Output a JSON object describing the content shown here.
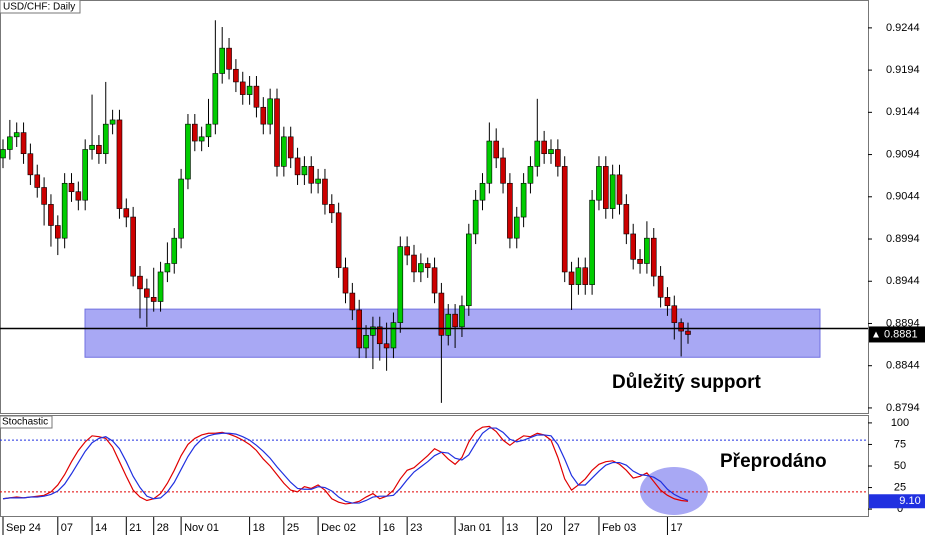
{
  "chart_data": [
    {
      "type": "candlestick",
      "title": "USD/CHF: Daily",
      "categories": [
        "Sep 24",
        null,
        null,
        null,
        null,
        null,
        null,
        null,
        "07",
        null,
        null,
        null,
        null,
        "14",
        null,
        null,
        null,
        null,
        "21",
        null,
        null,
        null,
        "28",
        null,
        null,
        null,
        "Nov 01",
        null,
        null,
        null,
        null,
        null,
        null,
        null,
        null,
        null,
        "18",
        null,
        null,
        null,
        null,
        "25",
        null,
        null,
        null,
        null,
        "Dec 02",
        null,
        null,
        null,
        null,
        null,
        null,
        null,
        null,
        "16",
        null,
        null,
        null,
        "23",
        null,
        null,
        null,
        null,
        null,
        null,
        "Jan 01",
        null,
        null,
        null,
        null,
        null,
        null,
        "13",
        null,
        null,
        null,
        null,
        "20",
        null,
        null,
        null,
        "27",
        null,
        null,
        null,
        null,
        "Feb 03",
        null,
        null,
        null,
        null,
        null,
        null,
        null,
        null,
        null,
        "17",
        null,
        null,
        null
      ],
      "open": [
        0.909,
        0.91,
        0.9115,
        0.912,
        0.9095,
        0.907,
        0.9055,
        0.9035,
        0.901,
        0.8995,
        0.906,
        0.905,
        0.904,
        0.91,
        0.9105,
        0.9095,
        0.913,
        0.9135,
        0.903,
        0.902,
        0.895,
        0.8935,
        0.8925,
        0.892,
        0.8955,
        0.8965,
        0.8995,
        0.9065,
        0.913,
        0.911,
        0.9115,
        0.913,
        0.919,
        0.922,
        0.9195,
        0.918,
        0.9165,
        0.9175,
        0.915,
        0.913,
        0.916,
        0.908,
        0.9115,
        0.909,
        0.907,
        0.908,
        0.906,
        0.9065,
        0.9035,
        0.9025,
        0.896,
        0.893,
        0.891,
        0.8865,
        0.888,
        0.889,
        0.887,
        0.8865,
        0.8895,
        0.8985,
        0.8975,
        0.8955,
        0.8965,
        0.896,
        0.893,
        0.888,
        0.8905,
        0.889,
        0.8915,
        0.9,
        0.904,
        0.906,
        0.911,
        0.909,
        0.906,
        0.8995,
        0.902,
        0.906,
        0.908,
        0.911,
        0.9095,
        0.91,
        0.908,
        0.8955,
        0.894,
        0.896,
        0.894,
        0.904,
        0.908,
        0.903,
        0.907,
        0.9035,
        0.9,
        0.897,
        0.8965,
        0.8995,
        0.895,
        0.8925,
        0.8915,
        0.8895,
        0.8885
      ],
      "high": [
        0.9112,
        0.9135,
        0.9132,
        0.9132,
        0.9107,
        0.9082,
        0.9067,
        0.9047,
        0.9022,
        0.9072,
        0.9072,
        0.9062,
        0.9112,
        0.9165,
        0.9117,
        0.918,
        0.9147,
        0.9147,
        0.9042,
        0.9032,
        0.8962,
        0.8947,
        0.896,
        0.8967,
        0.899,
        0.9007,
        0.9077,
        0.9142,
        0.9142,
        0.9127,
        0.916,
        0.9253,
        0.9245,
        0.9232,
        0.9207,
        0.9192,
        0.9187,
        0.9187,
        0.9162,
        0.9172,
        0.9172,
        0.9127,
        0.9127,
        0.9102,
        0.9092,
        0.9092,
        0.9077,
        0.9077,
        0.9047,
        0.9037,
        0.8972,
        0.8942,
        0.8922,
        0.8892,
        0.8902,
        0.8902,
        0.8895,
        0.8907,
        0.8997,
        0.8997,
        0.8987,
        0.8977,
        0.8972,
        0.8972,
        0.8942,
        0.8917,
        0.8917,
        0.8927,
        0.9012,
        0.9052,
        0.9072,
        0.9132,
        0.9125,
        0.9102,
        0.9072,
        0.9032,
        0.9072,
        0.9092,
        0.916,
        0.9122,
        0.9112,
        0.9112,
        0.9092,
        0.8967,
        0.8972,
        0.8972,
        0.9052,
        0.9092,
        0.9092,
        0.9082,
        0.9082,
        0.9047,
        0.9012,
        0.8982,
        0.9015,
        0.9007,
        0.8962,
        0.8937,
        0.8927,
        0.89,
        0.8895
      ],
      "low": [
        0.9078,
        0.9088,
        0.9103,
        0.9083,
        0.9058,
        0.9043,
        0.901,
        0.8985,
        0.8975,
        0.8983,
        0.9038,
        0.9028,
        0.9028,
        0.9088,
        0.9083,
        0.9083,
        0.9118,
        0.9018,
        0.9008,
        0.8938,
        0.89,
        0.889,
        0.8908,
        0.8908,
        0.8943,
        0.8953,
        0.8983,
        0.9053,
        0.9098,
        0.9098,
        0.9103,
        0.9118,
        0.9178,
        0.9183,
        0.9168,
        0.9153,
        0.9153,
        0.9138,
        0.9118,
        0.9118,
        0.9068,
        0.9068,
        0.9078,
        0.9058,
        0.9058,
        0.9048,
        0.9048,
        0.9023,
        0.9013,
        0.8948,
        0.8918,
        0.8898,
        0.8853,
        0.8853,
        0.884,
        0.885,
        0.8838,
        0.8853,
        0.8883,
        0.8963,
        0.8943,
        0.8943,
        0.8948,
        0.8918,
        0.88,
        0.8868,
        0.8865,
        0.8878,
        0.8903,
        0.8988,
        0.9028,
        0.9048,
        0.9078,
        0.9048,
        0.8983,
        0.8983,
        0.9008,
        0.9048,
        0.9068,
        0.9083,
        0.9083,
        0.9068,
        0.8943,
        0.891,
        0.8928,
        0.8928,
        0.8928,
        0.9028,
        0.9018,
        0.9018,
        0.9023,
        0.8988,
        0.8958,
        0.8953,
        0.8953,
        0.8938,
        0.8913,
        0.8903,
        0.8875,
        0.8855,
        0.887
      ],
      "close": [
        0.91,
        0.9115,
        0.912,
        0.9095,
        0.907,
        0.9055,
        0.9035,
        0.901,
        0.8995,
        0.906,
        0.905,
        0.904,
        0.91,
        0.9105,
        0.9095,
        0.913,
        0.9135,
        0.903,
        0.902,
        0.895,
        0.8935,
        0.8925,
        0.892,
        0.8955,
        0.8965,
        0.8995,
        0.9065,
        0.913,
        0.911,
        0.9115,
        0.913,
        0.919,
        0.922,
        0.9195,
        0.918,
        0.9165,
        0.9175,
        0.915,
        0.913,
        0.916,
        0.908,
        0.9115,
        0.909,
        0.907,
        0.908,
        0.906,
        0.9065,
        0.9035,
        0.9025,
        0.896,
        0.893,
        0.891,
        0.8865,
        0.888,
        0.889,
        0.887,
        0.8865,
        0.8895,
        0.8985,
        0.8975,
        0.8955,
        0.8965,
        0.896,
        0.893,
        0.888,
        0.8905,
        0.889,
        0.8915,
        0.9,
        0.904,
        0.906,
        0.911,
        0.909,
        0.906,
        0.8995,
        0.902,
        0.906,
        0.908,
        0.911,
        0.9095,
        0.91,
        0.908,
        0.8955,
        0.894,
        0.896,
        0.894,
        0.904,
        0.908,
        0.903,
        0.907,
        0.9035,
        0.9,
        0.897,
        0.8965,
        0.8995,
        0.895,
        0.8925,
        0.8915,
        0.8895,
        0.8885,
        0.8881
      ],
      "up_color": "#00cc00",
      "down_color": "#cc0000",
      "ylim": [
        0.8788,
        0.9277
      ],
      "yticks": [
        0.9244,
        0.9194,
        0.9144,
        0.9094,
        0.9044,
        0.8994,
        0.8944,
        0.8894,
        0.8844,
        0.8794
      ],
      "support_zone": [
        0.8854,
        0.8911
      ],
      "support_line": 0.8888,
      "annotation": "Důležitý support"
    },
    {
      "type": "line",
      "title": "Stochastic",
      "series": [
        {
          "color": "#e00000",
          "values": [
            12,
            13,
            14,
            13,
            14,
            15,
            16,
            20,
            28,
            40,
            55,
            68,
            78,
            85,
            84,
            82,
            72,
            55,
            38,
            22,
            14,
            10,
            12,
            18,
            30,
            45,
            62,
            75,
            82,
            86,
            88,
            88,
            89,
            87,
            84,
            80,
            75,
            68,
            58,
            50,
            40,
            30,
            22,
            20,
            26,
            24,
            28,
            22,
            12,
            8,
            6,
            7,
            9,
            14,
            18,
            12,
            15,
            22,
            35,
            45,
            48,
            55,
            62,
            70,
            66,
            58,
            52,
            60,
            78,
            90,
            95,
            96,
            90,
            80,
            74,
            80,
            85,
            84,
            88,
            86,
            80,
            60,
            35,
            22,
            28,
            35,
            45,
            52,
            55,
            56,
            52,
            45,
            36,
            38,
            42,
            32,
            22,
            16,
            12,
            10,
            9.1
          ],
          "last_value_label": "9.10"
        },
        {
          "color": "#2030e0",
          "values": [
            12,
            13,
            13,
            13,
            14,
            14,
            15,
            17,
            21,
            29,
            41,
            54,
            67,
            77,
            82,
            84,
            79,
            70,
            55,
            38,
            25,
            15,
            12,
            13,
            20,
            31,
            46,
            61,
            73,
            81,
            85,
            87,
            88,
            88,
            87,
            84,
            80,
            74,
            67,
            59,
            49,
            40,
            31,
            24,
            23,
            23,
            26,
            25,
            21,
            14,
            9,
            7,
            7,
            10,
            14,
            15,
            15,
            16,
            24,
            34,
            43,
            49,
            55,
            62,
            66,
            65,
            59,
            57,
            63,
            76,
            88,
            94,
            94,
            89,
            81,
            78,
            80,
            83,
            86,
            86,
            85,
            75,
            58,
            39,
            28,
            28,
            36,
            44,
            51,
            54,
            54,
            51,
            44,
            40,
            39,
            37,
            32,
            23,
            17,
            13,
            10
          ]
        }
      ],
      "levels": [
        {
          "value": 80,
          "color": "#2030e0"
        },
        {
          "value": 20,
          "color": "#e00000"
        }
      ],
      "ylim": [
        -8,
        108
      ],
      "yticks": [
        100,
        75,
        50,
        25,
        0
      ],
      "annotation": "Přeprodáno"
    }
  ]
}
